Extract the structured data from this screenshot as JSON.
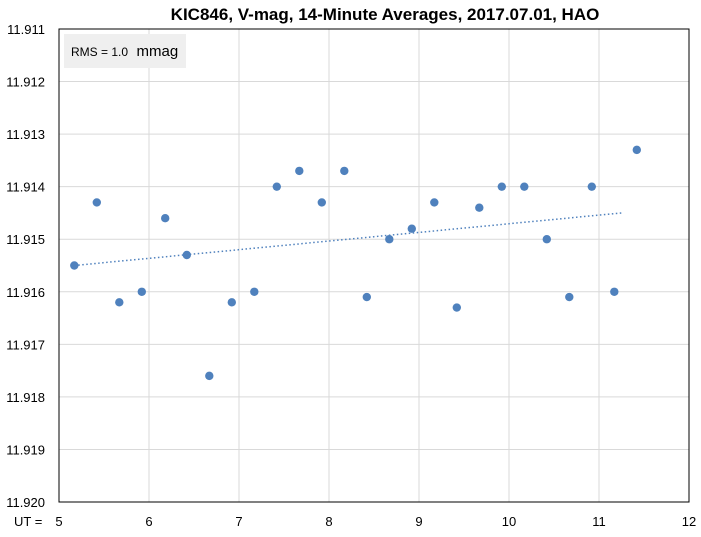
{
  "chart_data": {
    "type": "scatter",
    "title": "KIC846, V-mag, 14-Minute Averages, 2017.07.01, HAO",
    "xlabel": "UT =",
    "ylabel": "",
    "xlim": [
      5,
      12
    ],
    "ylim": [
      11.911,
      11.92
    ],
    "y_inverted": true,
    "grid": true,
    "x_ticks": [
      "5",
      "6",
      "7",
      "8",
      "9",
      "10",
      "11",
      "12"
    ],
    "y_ticks": [
      "11.911",
      "11.912",
      "11.913",
      "11.914",
      "11.915",
      "11.916",
      "11.917",
      "11.918",
      "11.919",
      "11.920"
    ],
    "annotation": {
      "rms_label": "RMS = 1.0",
      "rms_unit": "mmag"
    },
    "colors": {
      "points": "#4f81bd",
      "trend": "#4f81bd",
      "grid": "#d9d9d9",
      "annotation_bg": "#efefef"
    },
    "series": [
      {
        "x": [
          5.17,
          5.42,
          5.67,
          5.92,
          6.18,
          6.42,
          6.67,
          6.92,
          7.17,
          7.42,
          7.67,
          7.92,
          8.17,
          8.42,
          8.67,
          8.92,
          9.17,
          9.42,
          9.67,
          9.92,
          10.17,
          10.42,
          10.67,
          10.92,
          11.17,
          11.42
        ],
        "y": [
          11.9155,
          11.9143,
          11.9162,
          11.916,
          11.9146,
          11.9153,
          11.9176,
          11.9162,
          11.916,
          11.914,
          11.9137,
          11.9143,
          11.9137,
          11.9161,
          11.915,
          11.9148,
          11.9143,
          11.9163,
          11.9144,
          11.914,
          11.914,
          11.915,
          11.9161,
          11.914,
          11.916,
          11.9133
        ]
      }
    ],
    "trendline": {
      "x": [
        5.17,
        11.25
      ],
      "y": [
        11.9155,
        11.9145
      ]
    }
  }
}
